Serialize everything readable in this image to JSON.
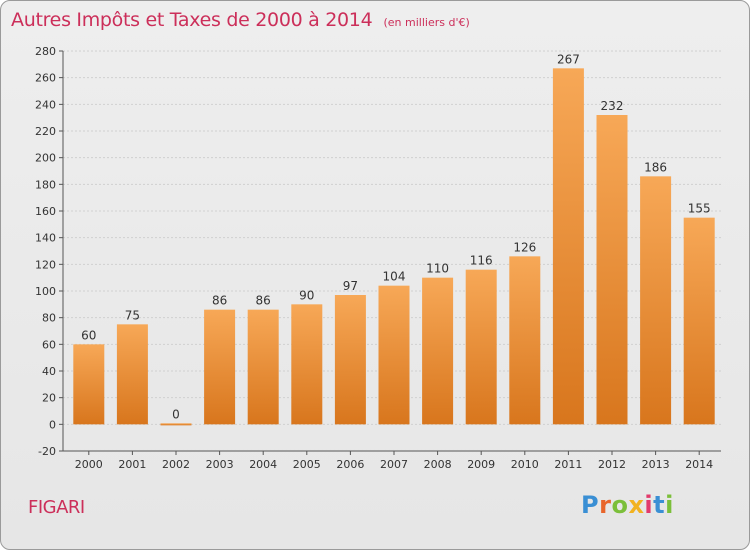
{
  "header": {
    "title": "Autres Impôts et Taxes de 2000 à 2014",
    "subtitle": "(en milliers d'€)"
  },
  "footer": {
    "commune": "FIGARI",
    "logo": {
      "text": "Proxiti",
      "letter_colors": [
        "#3a8fd4",
        "#e8652b",
        "#7bbf3a",
        "#f2b21f",
        "#e23a6c",
        "#3a8fd4",
        "#7bbf3a"
      ]
    }
  },
  "colors": {
    "bar_light": "#f7a857",
    "bar_dark": "#d8761d",
    "title": "#cc2f5a",
    "grid": "#d0d0d0"
  },
  "chart_data": {
    "type": "bar",
    "categories": [
      "2000",
      "2001",
      "2002",
      "2003",
      "2004",
      "2005",
      "2006",
      "2007",
      "2008",
      "2009",
      "2010",
      "2011",
      "2012",
      "2013",
      "2014"
    ],
    "values": [
      60,
      75,
      0,
      86,
      86,
      90,
      97,
      104,
      110,
      116,
      126,
      267,
      232,
      186,
      155
    ],
    "ylim": [
      -20,
      280
    ],
    "yticks": [
      -20,
      0,
      20,
      40,
      60,
      80,
      100,
      120,
      140,
      160,
      180,
      200,
      220,
      240,
      260,
      280
    ],
    "grid": "horizontal",
    "legend": "none"
  }
}
